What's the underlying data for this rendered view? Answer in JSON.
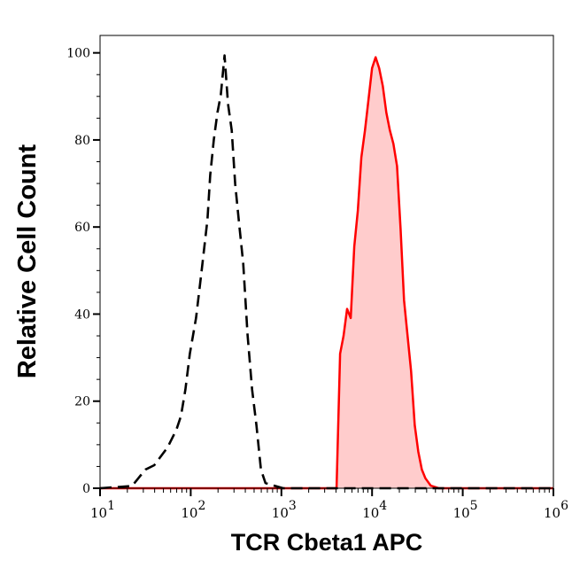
{
  "chart_data": {
    "type": "area",
    "xlabel": "TCR Cbeta1 APC",
    "ylabel": "Relative Cell Count",
    "xscale": "log",
    "xlim": [
      10,
      1000000
    ],
    "ylim": [
      0,
      104
    ],
    "x_ticks": [
      {
        "base": "10",
        "exp": "1"
      },
      {
        "base": "10",
        "exp": "2"
      },
      {
        "base": "10",
        "exp": "3"
      },
      {
        "base": "10",
        "exp": "4"
      },
      {
        "base": "10",
        "exp": "5"
      },
      {
        "base": "10",
        "exp": "6"
      }
    ],
    "y_ticks": [
      "0",
      "20",
      "40",
      "60",
      "80",
      "100"
    ],
    "grid": false,
    "series": [
      {
        "style": "dashed line",
        "color": "#000000",
        "x": [
          10,
          22.5,
          31.6,
          39.6,
          55.6,
          69.7,
          78,
          87.3,
          97.7,
          114.5,
          131,
          153,
          164,
          180,
          197,
          215,
          236,
          258,
          283,
          309,
          338,
          379,
          424,
          475,
          531,
          595,
          667,
          835,
          1047,
          1000000
        ],
        "y": [
          0,
          0.5,
          4.3,
          5.3,
          9.4,
          13.5,
          16.6,
          22.7,
          30.9,
          39.1,
          49.4,
          61.7,
          71.9,
          80.1,
          86.3,
          90.4,
          99.4,
          88.3,
          82.2,
          69.9,
          61.7,
          51.6,
          35.2,
          22.7,
          14.5,
          4.3,
          1.2,
          0.6,
          0,
          0
        ]
      },
      {
        "style": "filled line",
        "color": "#ff0000",
        "fill": "#ffcccc",
        "x": [
          10,
          4055,
          4436,
          4853,
          5309,
          5821,
          6368,
          6966,
          7621,
          8356,
          9141,
          10000,
          10940,
          11970,
          13120,
          14360,
          15710,
          17180,
          18840,
          20610,
          22540,
          24660,
          26980,
          29580,
          32360,
          35400,
          38730,
          44360,
          54330,
          1000000
        ],
        "y": [
          0,
          0,
          30.9,
          35.0,
          41.2,
          39.1,
          55.5,
          63.7,
          76.0,
          82.2,
          89.3,
          96.5,
          99.0,
          96.5,
          92.4,
          86.3,
          82.2,
          79.1,
          74.0,
          59.6,
          43.2,
          35.0,
          26.8,
          14.5,
          8.4,
          4.3,
          2.3,
          0.6,
          0,
          0
        ]
      }
    ]
  }
}
